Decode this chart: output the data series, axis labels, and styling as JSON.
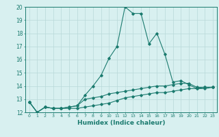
{
  "x": [
    0,
    1,
    2,
    3,
    4,
    5,
    6,
    7,
    8,
    9,
    10,
    11,
    12,
    13,
    14,
    15,
    16,
    17,
    18,
    19,
    20,
    21,
    22,
    23
  ],
  "line_max": [
    12.8,
    12.0,
    12.4,
    12.3,
    12.3,
    12.4,
    12.5,
    13.3,
    14.0,
    14.8,
    16.1,
    17.0,
    20.0,
    19.5,
    19.5,
    17.2,
    18.0,
    16.4,
    14.3,
    14.4,
    14.1,
    13.8,
    13.9,
    13.9
  ],
  "line_mean": [
    12.8,
    12.0,
    12.4,
    12.3,
    12.3,
    12.4,
    12.5,
    13.0,
    13.1,
    13.2,
    13.4,
    13.5,
    13.6,
    13.7,
    13.8,
    13.9,
    14.0,
    14.0,
    14.1,
    14.2,
    14.2,
    13.9,
    13.9,
    13.9
  ],
  "line_min": [
    12.8,
    12.0,
    12.4,
    12.3,
    12.3,
    12.3,
    12.3,
    12.4,
    12.5,
    12.6,
    12.7,
    12.9,
    13.1,
    13.2,
    13.3,
    13.4,
    13.5,
    13.5,
    13.6,
    13.7,
    13.8,
    13.8,
    13.8,
    13.9
  ],
  "line_color": "#1a7a6e",
  "bg_color": "#d8f0f0",
  "grid_color": "#b8d8d8",
  "xlabel": "Humidex (Indice chaleur)",
  "xlim": [
    -0.5,
    23.5
  ],
  "ylim": [
    12,
    20
  ],
  "yticks": [
    12,
    13,
    14,
    15,
    16,
    17,
    18,
    19,
    20
  ],
  "xticks": [
    0,
    1,
    2,
    3,
    4,
    5,
    6,
    7,
    8,
    9,
    10,
    11,
    12,
    13,
    14,
    15,
    16,
    17,
    18,
    19,
    20,
    21,
    22,
    23
  ]
}
